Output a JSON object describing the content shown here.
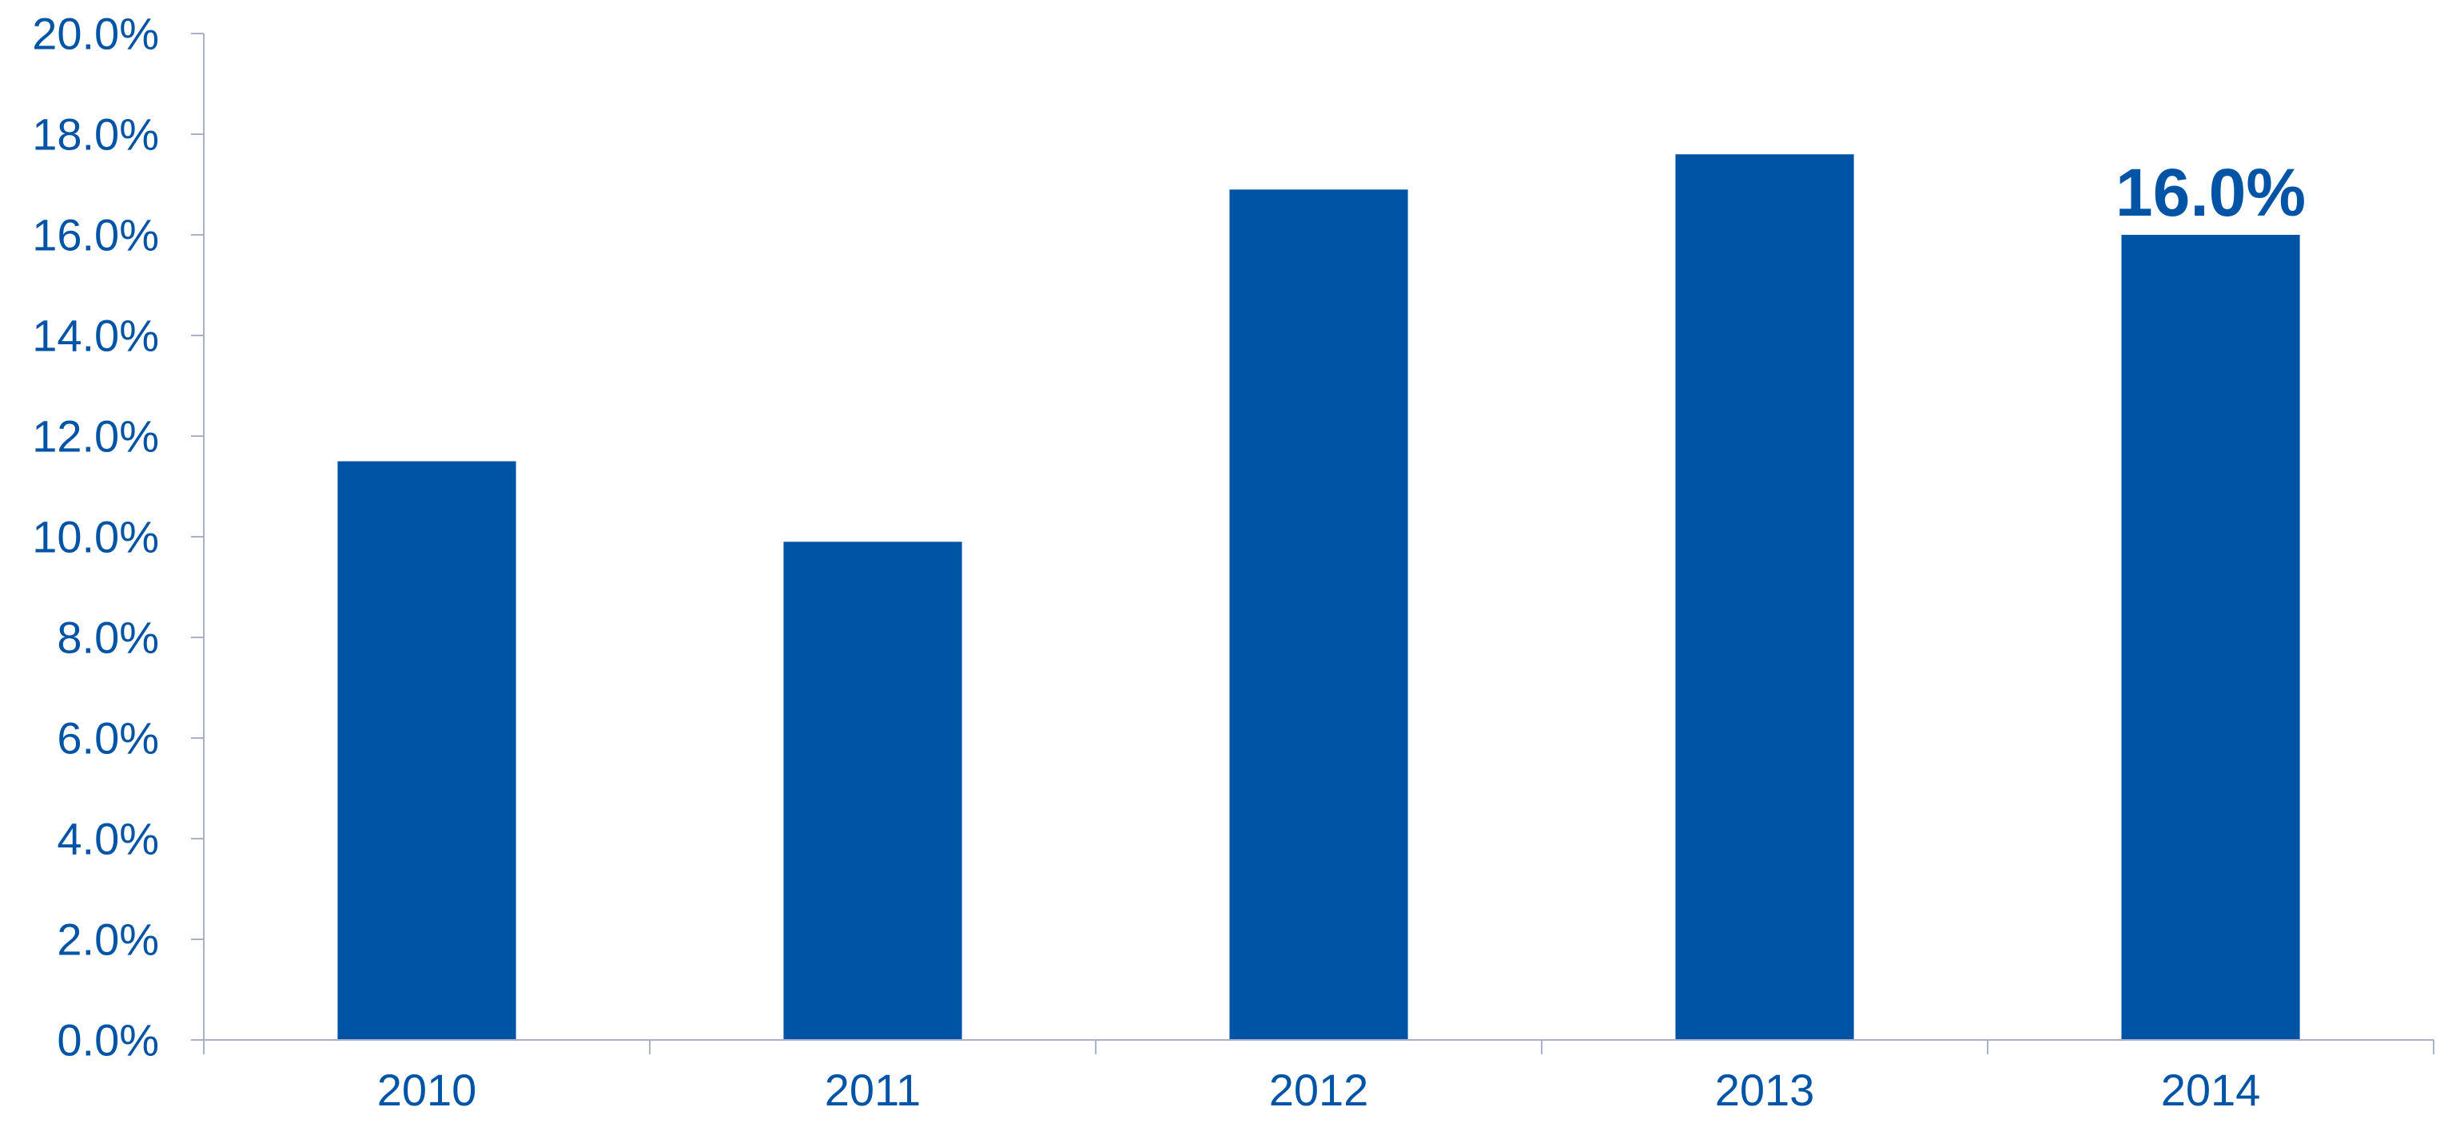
{
  "chart_data": {
    "type": "bar",
    "categories": [
      "2010",
      "2011",
      "2012",
      "2013",
      "2014"
    ],
    "values": [
      11.5,
      9.9,
      16.9,
      17.6,
      16.0
    ],
    "data_labels": [
      "",
      "",
      "",
      "",
      "16.0%"
    ],
    "y_ticks": [
      "0.0%",
      "2.0%",
      "4.0%",
      "6.0%",
      "8.0%",
      "10.0%",
      "12.0%",
      "14.0%",
      "16.0%",
      "18.0%",
      "20.0%"
    ],
    "ylim": [
      0,
      20
    ],
    "title": "",
    "xlabel": "",
    "ylabel": "",
    "grid": false,
    "legend": "none",
    "colors": {
      "bar": "#0054A6",
      "text": "#0054A6",
      "axis": "#A9B0C8"
    }
  }
}
